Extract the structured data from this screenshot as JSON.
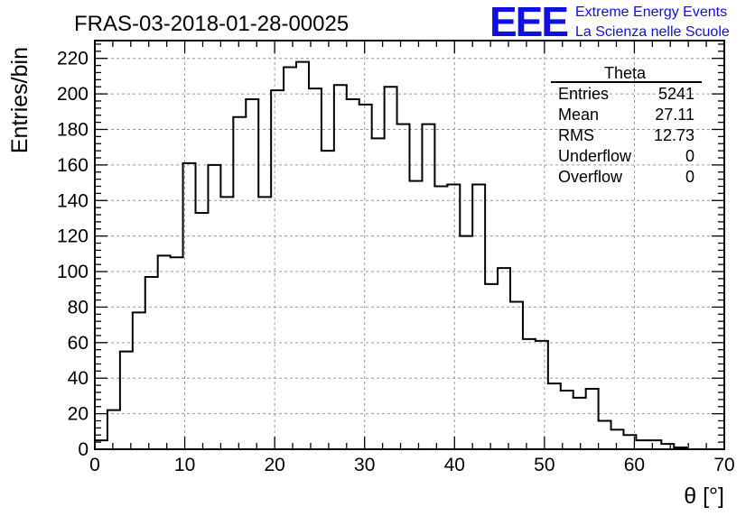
{
  "header": {
    "title": "FRAS-03-2018-01-28-00025",
    "logo_text": "EEE",
    "logo_line1": "Extreme Energy Events",
    "logo_line2": "La Scienza nelle Scuole",
    "logo_color": "#1010e0"
  },
  "stats_box": {
    "title": "Theta",
    "rows": [
      {
        "label": "Entries",
        "value": "5241"
      },
      {
        "label": "Mean",
        "value": "27.11"
      },
      {
        "label": "RMS",
        "value": "12.73"
      },
      {
        "label": "Underflow",
        "value": "0"
      },
      {
        "label": "Overflow",
        "value": "0"
      }
    ]
  },
  "chart_data": {
    "type": "histogram",
    "title": "FRAS-03-2018-01-28-00025",
    "xlabel": "θ [°]",
    "ylabel": "Entries/bin",
    "xlim": [
      0,
      70
    ],
    "ylim": [
      0,
      230
    ],
    "grid": true,
    "x_ticks": [
      0,
      10,
      20,
      30,
      40,
      50,
      60,
      70
    ],
    "y_ticks": [
      0,
      20,
      40,
      60,
      80,
      100,
      120,
      140,
      160,
      180,
      200,
      220
    ],
    "bin_width": 1.4,
    "bin_edges_start": 0,
    "values": [
      5,
      22,
      55,
      77,
      97,
      109,
      108,
      161,
      133,
      160,
      142,
      187,
      197,
      142,
      202,
      215,
      218,
      203,
      168,
      205,
      197,
      194,
      175,
      204,
      183,
      151,
      183,
      148,
      149,
      120,
      149,
      93,
      102,
      83,
      62,
      61,
      37,
      33,
      29,
      34,
      16,
      11,
      8,
      5,
      5,
      3,
      1,
      0,
      0,
      0
    ]
  }
}
